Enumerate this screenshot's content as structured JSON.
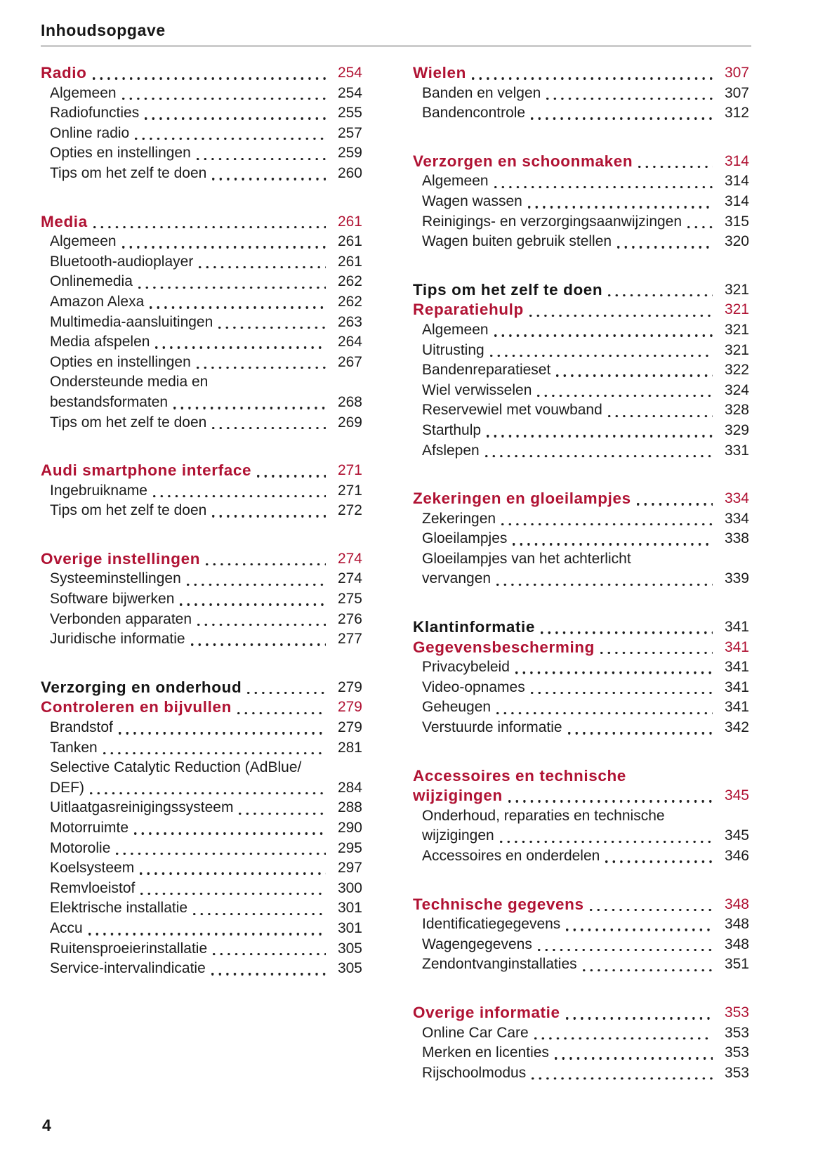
{
  "document": {
    "header": {
      "title": "Inhoudsopgave"
    },
    "footer": {
      "page_number": "4"
    }
  },
  "colors": {
    "accent_red": "#b01233",
    "text": "#1c1c1c",
    "rule": "#4d4d4d"
  },
  "toc": {
    "columns": [
      {
        "blocks": [
          {
            "headings": [
              {
                "label": "Radio",
                "page": "254",
                "style": "red"
              }
            ],
            "entries": [
              {
                "label": "Algemeen",
                "page": "254"
              },
              {
                "label": "Radiofuncties",
                "page": "255"
              },
              {
                "label": "Online radio",
                "page": "257"
              },
              {
                "label": "Opties en instellingen",
                "page": "259"
              },
              {
                "label": "Tips om het zelf te doen",
                "page": "260"
              }
            ]
          },
          {
            "headings": [
              {
                "label": "Media",
                "page": "261",
                "style": "red"
              }
            ],
            "entries": [
              {
                "label": "Algemeen",
                "page": "261"
              },
              {
                "label": "Bluetooth-audioplayer",
                "page": "261"
              },
              {
                "label": "Onlinemedia",
                "page": "262"
              },
              {
                "label": "Amazon Alexa",
                "page": "262"
              },
              {
                "label": "Multimedia-aansluitingen",
                "page": "263"
              },
              {
                "label": "Media afspelen",
                "page": "264"
              },
              {
                "label": "Opties en instellingen",
                "page": "267"
              },
              {
                "lines": [
                  "Ondersteunde media en",
                  "bestandsformaten"
                ],
                "page": "268"
              },
              {
                "label": "Tips om het zelf te doen",
                "page": "269"
              }
            ]
          },
          {
            "headings": [
              {
                "label": "Audi smartphone interface",
                "page": "271",
                "style": "red"
              }
            ],
            "entries": [
              {
                "label": "Ingebruikname",
                "page": "271"
              },
              {
                "label": "Tips om het zelf te doen",
                "page": "272"
              }
            ]
          },
          {
            "headings": [
              {
                "label": "Overige instellingen",
                "page": "274",
                "style": "red"
              }
            ],
            "entries": [
              {
                "label": "Systeeminstellingen",
                "page": "274"
              },
              {
                "label": "Software bijwerken",
                "page": "275"
              },
              {
                "label": "Verbonden apparaten",
                "page": "276"
              },
              {
                "label": "Juridische informatie",
                "page": "277"
              }
            ]
          },
          {
            "headings": [
              {
                "label": "Verzorging en onderhoud",
                "page": "279",
                "style": "black"
              },
              {
                "label": "Controleren en bijvullen",
                "page": "279",
                "style": "red"
              }
            ],
            "entries": [
              {
                "label": "Brandstof",
                "page": "279"
              },
              {
                "label": "Tanken",
                "page": "281"
              },
              {
                "lines": [
                  "Selective Catalytic Reduction (AdBlue/",
                  "DEF)"
                ],
                "page": "284"
              },
              {
                "label": "Uitlaatgasreinigingssysteem",
                "page": "288"
              },
              {
                "label": "Motorruimte",
                "page": "290"
              },
              {
                "label": "Motorolie",
                "page": "295"
              },
              {
                "label": "Koelsysteem",
                "page": "297"
              },
              {
                "label": "Remvloeistof",
                "page": "300"
              },
              {
                "label": "Elektrische installatie",
                "page": "301"
              },
              {
                "label": "Accu",
                "page": "301"
              },
              {
                "label": "Ruitensproeierinstallatie",
                "page": "305"
              },
              {
                "label": "Service-intervalindicatie",
                "page": "305"
              }
            ]
          }
        ]
      },
      {
        "blocks": [
          {
            "headings": [
              {
                "label": "Wielen",
                "page": "307",
                "style": "red"
              }
            ],
            "entries": [
              {
                "label": "Banden en velgen",
                "page": "307"
              },
              {
                "label": "Bandencontrole",
                "page": "312"
              }
            ]
          },
          {
            "headings": [
              {
                "label": "Verzorgen en schoonmaken",
                "page": "314",
                "style": "red"
              }
            ],
            "entries": [
              {
                "label": "Algemeen",
                "page": "314"
              },
              {
                "label": "Wagen wassen",
                "page": "314"
              },
              {
                "label": "Reinigings- en verzorgingsaanwijzingen",
                "page": "315"
              },
              {
                "label": "Wagen buiten gebruik stellen",
                "page": "320"
              }
            ]
          },
          {
            "headings": [
              {
                "label": "Tips om het zelf te doen",
                "page": "321",
                "style": "black"
              },
              {
                "label": "Reparatiehulp",
                "page": "321",
                "style": "red"
              }
            ],
            "entries": [
              {
                "label": "Algemeen",
                "page": "321"
              },
              {
                "label": "Uitrusting",
                "page": "321"
              },
              {
                "label": "Bandenreparatieset",
                "page": "322"
              },
              {
                "label": "Wiel verwisselen",
                "page": "324"
              },
              {
                "label": "Reservewiel met vouwband",
                "page": "328"
              },
              {
                "label": "Starthulp",
                "page": "329"
              },
              {
                "label": "Afslepen",
                "page": "331"
              }
            ]
          },
          {
            "headings": [
              {
                "label": "Zekeringen en gloeilampjes",
                "page": "334",
                "style": "red"
              }
            ],
            "entries": [
              {
                "label": "Zekeringen",
                "page": "334"
              },
              {
                "label": "Gloeilampjes",
                "page": "338"
              },
              {
                "lines": [
                  "Gloeilampjes van het achterlicht",
                  "vervangen"
                ],
                "page": "339"
              }
            ]
          },
          {
            "headings": [
              {
                "label": "Klantinformatie",
                "page": "341",
                "style": "black"
              },
              {
                "label": "Gegevensbescherming",
                "page": "341",
                "style": "red"
              }
            ],
            "entries": [
              {
                "label": "Privacybeleid",
                "page": "341"
              },
              {
                "label": "Video-opnames",
                "page": "341"
              },
              {
                "label": "Geheugen",
                "page": "341"
              },
              {
                "label": "Verstuurde informatie",
                "page": "342"
              }
            ]
          },
          {
            "headings": [
              {
                "lines": [
                  "Accessoires en technische",
                  "wijzigingen"
                ],
                "page": "345",
                "style": "red"
              }
            ],
            "entries": [
              {
                "lines": [
                  "Onderhoud, reparaties en technische",
                  "wijzigingen"
                ],
                "page": "345"
              },
              {
                "label": "Accessoires en onderdelen",
                "page": "346"
              }
            ]
          },
          {
            "headings": [
              {
                "label": "Technische gegevens",
                "page": "348",
                "style": "red"
              }
            ],
            "entries": [
              {
                "label": "Identificatiegegevens",
                "page": "348"
              },
              {
                "label": "Wagengegevens",
                "page": "348"
              },
              {
                "label": "Zendontvanginstallaties",
                "page": "351"
              }
            ]
          },
          {
            "headings": [
              {
                "label": "Overige informatie",
                "page": "353",
                "style": "red"
              }
            ],
            "entries": [
              {
                "label": "Online Car Care",
                "page": "353"
              },
              {
                "label": "Merken en licenties",
                "page": "353"
              },
              {
                "label": "Rijschoolmodus",
                "page": "353"
              }
            ]
          }
        ]
      }
    ]
  }
}
